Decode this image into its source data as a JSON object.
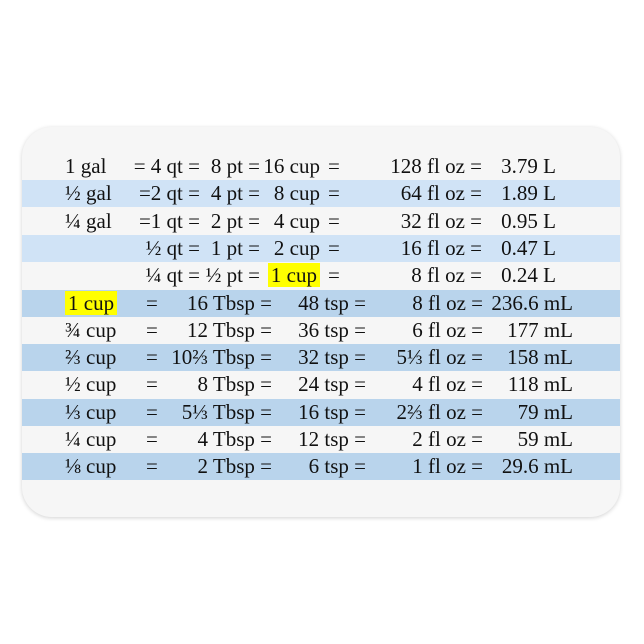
{
  "colors": {
    "band_light": "#d0e3f6",
    "band_dark": "#b9d4ec",
    "highlight": "#ffff00",
    "card": "#f6f6f6"
  },
  "volume_rows": [
    {
      "band": "none",
      "cells": [
        "1 gal",
        "= 4 qt =",
        "8 pt =",
        "16 cup",
        "=",
        "128 fl oz =",
        "3.79 L"
      ],
      "highlight": false
    },
    {
      "band": "light",
      "cells": [
        "½ gal",
        "=2 qt =",
        "4 pt =",
        "8 cup",
        "=",
        "64 fl oz =",
        "1.89 L"
      ],
      "highlight": false
    },
    {
      "band": "none",
      "cells": [
        "¼ gal",
        "=1 qt =",
        "2 pt =",
        "4 cup",
        "=",
        "32 fl oz =",
        "0.95 L"
      ],
      "highlight": false
    },
    {
      "band": "light",
      "cells": [
        "",
        "½ qt =",
        "1 pt =",
        "2 cup",
        "=",
        "16 fl oz =",
        "0.47 L"
      ],
      "highlight": false
    },
    {
      "band": "none",
      "cells": [
        "",
        "¼ qt =",
        "½ pt =",
        "1 cup",
        "=",
        "8 fl oz =",
        "0.24 L"
      ],
      "highlight": true
    }
  ],
  "cup_rows": [
    {
      "band": "dark",
      "cells": [
        "1 cup",
        "=",
        "16 Tbsp =",
        "48 tsp =",
        "8 fl oz =",
        "236.6 mL"
      ],
      "highlight": true
    },
    {
      "band": "none",
      "cells": [
        "¾ cup",
        "=",
        "12 Tbsp =",
        "36 tsp =",
        "6 fl oz =",
        "177 mL"
      ],
      "highlight": false
    },
    {
      "band": "dark",
      "cells": [
        "⅔ cup",
        "=",
        "10⅔ Tbsp =",
        "32 tsp =",
        "5⅓ fl oz =",
        "158 mL"
      ],
      "highlight": false
    },
    {
      "band": "none",
      "cells": [
        "½ cup",
        "=",
        "8 Tbsp =",
        "24 tsp =",
        "4 fl oz =",
        "118 mL"
      ],
      "highlight": false
    },
    {
      "band": "dark",
      "cells": [
        "⅓ cup",
        "=",
        "5⅓ Tbsp =",
        "16 tsp =",
        "2⅔ fl oz =",
        "79 mL"
      ],
      "highlight": false
    },
    {
      "band": "none",
      "cells": [
        "¼ cup",
        "=",
        "4 Tbsp =",
        "12 tsp =",
        "2 fl oz =",
        "59 mL"
      ],
      "highlight": false
    },
    {
      "band": "dark",
      "cells": [
        "⅛ cup",
        "=",
        "2 Tbsp =",
        "6 tsp =",
        "1 fl oz =",
        "29.6 mL"
      ],
      "highlight": false
    }
  ]
}
